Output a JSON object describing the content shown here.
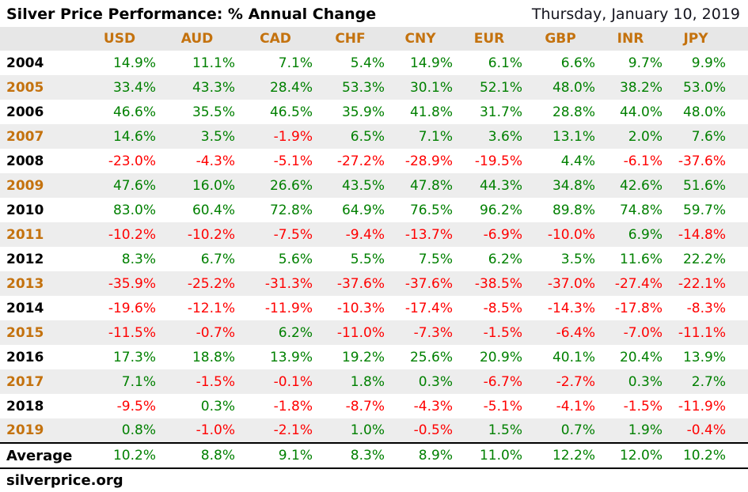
{
  "header": {
    "title": "Silver Price Performance: % Annual Change",
    "date": "Thursday, January 10, 2019"
  },
  "footer": {
    "site": "silverprice.org"
  },
  "colors": {
    "accent_orange": "#c4720e",
    "positive_green": "#008000",
    "negative_red": "#ff0000",
    "stripe_gray": "#ededed",
    "header_bg": "#e7e7e7"
  },
  "chart_data": {
    "type": "table",
    "title": "Silver Price Performance: % Annual Change",
    "unit": "% annual change",
    "value_suffix": "%",
    "columns": [
      "USD",
      "AUD",
      "CAD",
      "CHF",
      "CNY",
      "EUR",
      "GBP",
      "INR",
      "JPY"
    ],
    "rows": [
      {
        "year": "2004",
        "values": [
          14.9,
          11.1,
          7.1,
          5.4,
          14.9,
          6.1,
          6.6,
          9.7,
          9.9
        ]
      },
      {
        "year": "2005",
        "values": [
          33.4,
          43.3,
          28.4,
          53.3,
          30.1,
          52.1,
          48.0,
          38.2,
          53.0
        ]
      },
      {
        "year": "2006",
        "values": [
          46.6,
          35.5,
          46.5,
          35.9,
          41.8,
          31.7,
          28.8,
          44.0,
          48.0
        ]
      },
      {
        "year": "2007",
        "values": [
          14.6,
          3.5,
          -1.9,
          6.5,
          7.1,
          3.6,
          13.1,
          2.0,
          7.6
        ]
      },
      {
        "year": "2008",
        "values": [
          -23.0,
          -4.3,
          -5.1,
          -27.2,
          -28.9,
          -19.5,
          4.4,
          -6.1,
          -37.6
        ]
      },
      {
        "year": "2009",
        "values": [
          47.6,
          16.0,
          26.6,
          43.5,
          47.8,
          44.3,
          34.8,
          42.6,
          51.6
        ]
      },
      {
        "year": "2010",
        "values": [
          83.0,
          60.4,
          72.8,
          64.9,
          76.5,
          96.2,
          89.8,
          74.8,
          59.7
        ]
      },
      {
        "year": "2011",
        "values": [
          -10.2,
          -10.2,
          -7.5,
          -9.4,
          -13.7,
          -6.9,
          -10.0,
          6.9,
          -14.8
        ]
      },
      {
        "year": "2012",
        "values": [
          8.3,
          6.7,
          5.6,
          5.5,
          7.5,
          6.2,
          3.5,
          11.6,
          22.2
        ]
      },
      {
        "year": "2013",
        "values": [
          -35.9,
          -25.2,
          -31.3,
          -37.6,
          -37.6,
          -38.5,
          -37.0,
          -27.4,
          -22.1
        ]
      },
      {
        "year": "2014",
        "values": [
          -19.6,
          -12.1,
          -11.9,
          -10.3,
          -17.4,
          -8.5,
          -14.3,
          -17.8,
          -8.3
        ]
      },
      {
        "year": "2015",
        "values": [
          -11.5,
          -0.7,
          6.2,
          -11.0,
          -7.3,
          -1.5,
          -6.4,
          -7.0,
          -11.1
        ]
      },
      {
        "year": "2016",
        "values": [
          17.3,
          18.8,
          13.9,
          19.2,
          25.6,
          20.9,
          40.1,
          20.4,
          13.9
        ]
      },
      {
        "year": "2017",
        "values": [
          7.1,
          -1.5,
          -0.1,
          1.8,
          0.3,
          -6.7,
          -2.7,
          0.3,
          2.7
        ]
      },
      {
        "year": "2018",
        "values": [
          -9.5,
          0.3,
          -1.8,
          -8.7,
          -4.3,
          -5.1,
          -4.1,
          -1.5,
          -11.9
        ]
      },
      {
        "year": "2019",
        "values": [
          0.8,
          -1.0,
          -2.1,
          1.0,
          -0.5,
          1.5,
          0.7,
          1.9,
          -0.4
        ]
      }
    ],
    "average": {
      "label": "Average",
      "values": [
        10.2,
        8.8,
        9.1,
        8.3,
        8.9,
        11.0,
        12.2,
        12.0,
        10.2
      ]
    }
  }
}
